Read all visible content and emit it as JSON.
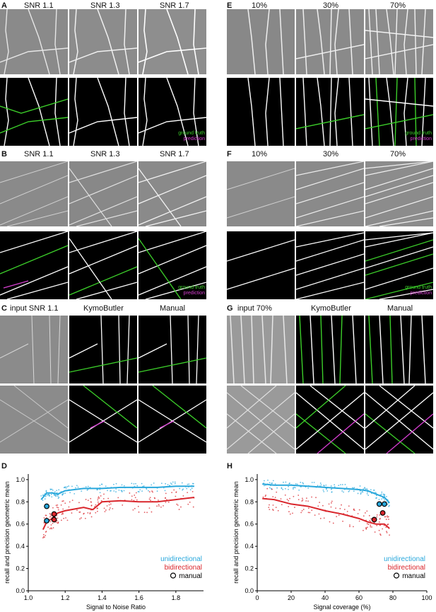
{
  "panels": {
    "A": {
      "letter": "A",
      "titles": [
        "SNR 1.1",
        "SNR 1.3",
        "SNR 1.7"
      ]
    },
    "B": {
      "letter": "B",
      "titles": [
        "SNR 1.1",
        "SNR 1.3",
        "SNR 1.7"
      ]
    },
    "C": {
      "letter": "C",
      "titles": [
        "input SNR 1.1",
        "KymoButler",
        "Manual"
      ]
    },
    "D": {
      "letter": "D"
    },
    "E": {
      "letter": "E",
      "titles": [
        "10%",
        "30%",
        "70%"
      ]
    },
    "F": {
      "letter": "F",
      "titles": [
        "10%",
        "30%",
        "70%"
      ]
    },
    "G": {
      "letter": "G",
      "titles": [
        "input 70%",
        "KymoButler",
        "Manual"
      ]
    },
    "H": {
      "letter": "H"
    }
  },
  "overlay_legend": {
    "ground_truth": "ground truth",
    "prediction": "prediction"
  },
  "colors": {
    "unidirectional": "#29a8dc",
    "bidirectional": "#d9262c",
    "ground_truth": "#3ccf2a",
    "prediction": "#d63fd1"
  },
  "chart_data": [
    {
      "type": "scatter",
      "panel": "D",
      "xlabel": "Signal to Noise Ratio",
      "ylabel": "recall and precision geometric mean",
      "xlim": [
        1.0,
        1.95
      ],
      "ylim": [
        0.0,
        1.05
      ],
      "xticks": [
        "1.0",
        "1.2",
        "1.4",
        "1.6",
        "1.8"
      ],
      "yticks": [
        "0.0",
        "0.2",
        "0.4",
        "0.6",
        "0.8",
        "1.0"
      ],
      "legend": {
        "position": "bottom-right",
        "unidirectional": "unidirectional",
        "bidirectional": "bidirectional",
        "manual": "manual"
      },
      "series": [
        {
          "key": "unidirectional",
          "x": [
            1.07,
            1.1,
            1.13,
            1.16,
            1.2,
            1.3,
            1.4,
            1.5,
            1.6,
            1.7,
            1.8,
            1.9
          ],
          "y": [
            0.82,
            0.88,
            0.88,
            0.87,
            0.9,
            0.92,
            0.92,
            0.93,
            0.93,
            0.93,
            0.94,
            0.94
          ]
        },
        {
          "key": "bidirectional",
          "x": [
            1.08,
            1.1,
            1.13,
            1.16,
            1.2,
            1.3,
            1.35,
            1.4,
            1.5,
            1.6,
            1.7,
            1.8,
            1.9
          ],
          "y": [
            0.55,
            0.62,
            0.65,
            0.7,
            0.72,
            0.75,
            0.73,
            0.8,
            0.81,
            0.8,
            0.8,
            0.82,
            0.84
          ]
        }
      ],
      "manual_points": [
        {
          "series": "unidirectional",
          "x": 1.1,
          "y": 0.76
        },
        {
          "series": "unidirectional",
          "x": 1.1,
          "y": 0.63
        },
        {
          "series": "bidirectional",
          "x": 1.14,
          "y": 0.69
        },
        {
          "series": "bidirectional",
          "x": 1.14,
          "y": 0.64
        }
      ]
    },
    {
      "type": "scatter",
      "panel": "H",
      "xlabel": "Signal coverage (%)",
      "ylabel": "recall and precision geometric mean",
      "xlim": [
        0,
        100
      ],
      "ylim": [
        0.0,
        1.05
      ],
      "xticks": [
        "0",
        "20",
        "40",
        "60",
        "80",
        "100"
      ],
      "yticks": [
        "0.0",
        "0.2",
        "0.4",
        "0.6",
        "0.8",
        "1.0"
      ],
      "legend": {
        "position": "bottom-right",
        "unidirectional": "unidirectional",
        "bidirectional": "bidirectional",
        "manual": "manual"
      },
      "series": [
        {
          "key": "unidirectional",
          "x": [
            3,
            10,
            20,
            30,
            40,
            50,
            60,
            65,
            70,
            75,
            78
          ],
          "y": [
            0.96,
            0.95,
            0.95,
            0.94,
            0.93,
            0.92,
            0.91,
            0.9,
            0.87,
            0.84,
            0.79
          ]
        },
        {
          "key": "bidirectional",
          "x": [
            3,
            10,
            20,
            30,
            40,
            50,
            60,
            65,
            70,
            75,
            78
          ],
          "y": [
            0.83,
            0.82,
            0.78,
            0.76,
            0.72,
            0.69,
            0.65,
            0.62,
            0.6,
            0.6,
            0.56
          ]
        }
      ],
      "manual_points": [
        {
          "series": "unidirectional",
          "x": 72,
          "y": 0.78
        },
        {
          "series": "unidirectional",
          "x": 75,
          "y": 0.78
        },
        {
          "series": "bidirectional",
          "x": 74,
          "y": 0.7
        },
        {
          "series": "bidirectional",
          "x": 69,
          "y": 0.64
        }
      ]
    }
  ]
}
